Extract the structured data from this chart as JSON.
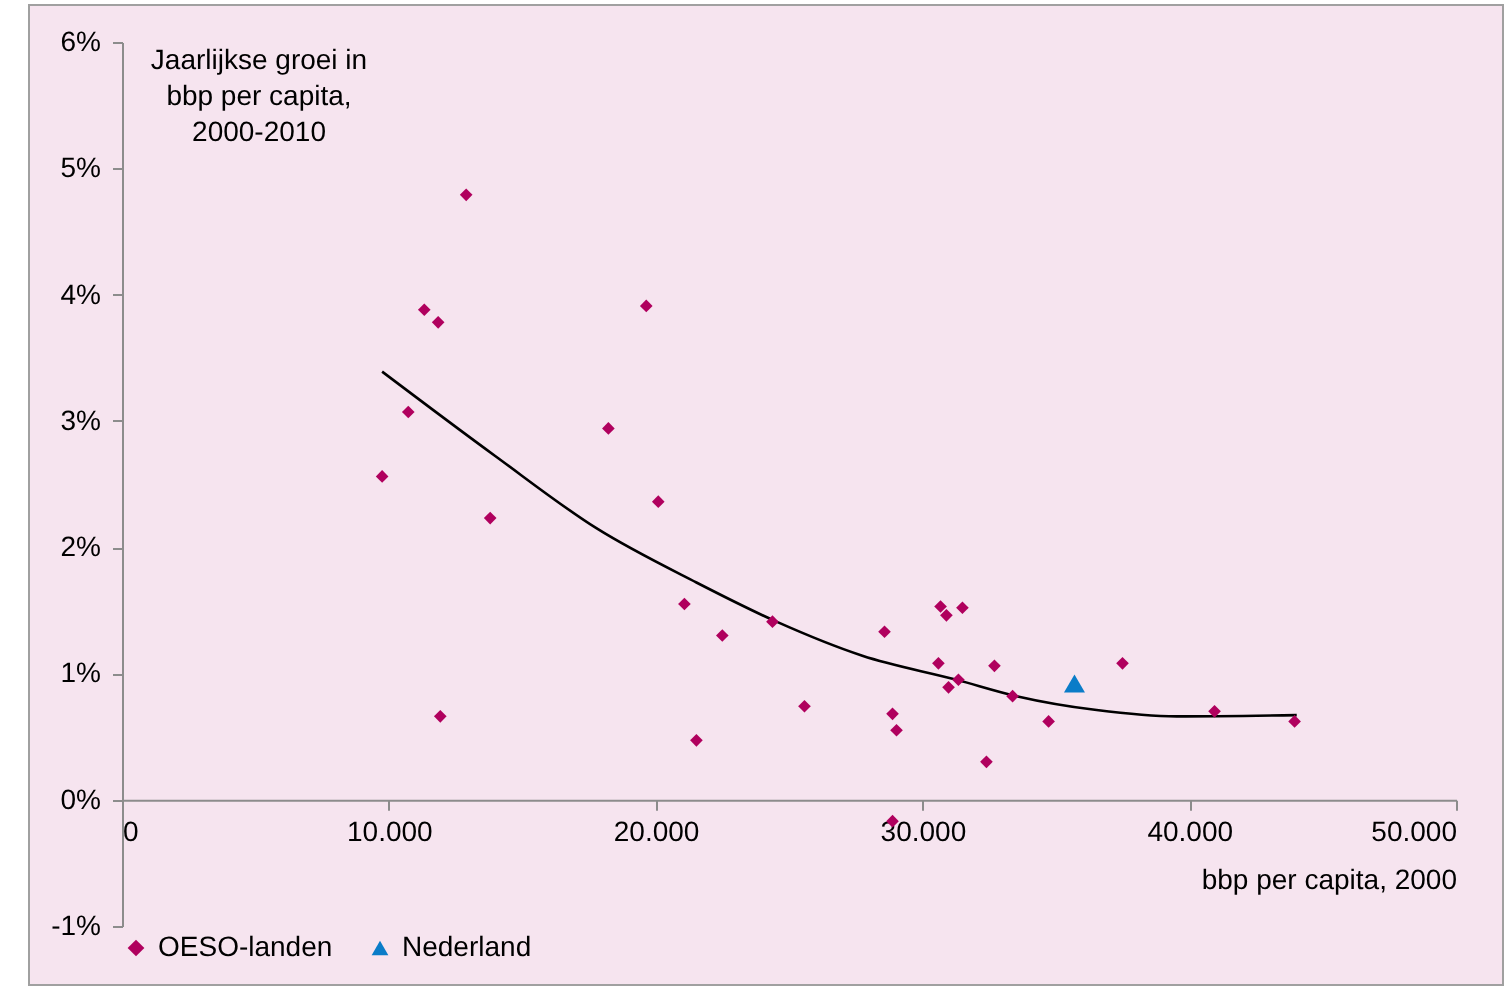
{
  "chart_data": {
    "type": "scatter",
    "ylabel": "Jaarlijkse groei in\nbbp per capita,\n2000-2010",
    "xlabel": "bbp per capita, 2000",
    "xlim": [
      0,
      50000
    ],
    "xticks": [
      {
        "value": 0,
        "label": "0"
      },
      {
        "value": 10000,
        "label": "10.000"
      },
      {
        "value": 20000,
        "label": "20.000"
      },
      {
        "value": 30000,
        "label": "30.000"
      },
      {
        "value": 40000,
        "label": "40.000"
      },
      {
        "value": 50000,
        "label": "50.000"
      }
    ],
    "ylim": [
      -1,
      6
    ],
    "yticks": [
      {
        "value": -1,
        "label": "-1%"
      },
      {
        "value": 0,
        "label": "0%"
      },
      {
        "value": 1,
        "label": "1%"
      },
      {
        "value": 2,
        "label": "2%"
      },
      {
        "value": 3,
        "label": "3%"
      },
      {
        "value": 4,
        "label": "4%"
      },
      {
        "value": 5,
        "label": "5%"
      },
      {
        "value": 6,
        "label": "6%"
      }
    ],
    "grid": false,
    "legend": "bottom",
    "series": [
      {
        "name": "OESO-landen",
        "color": "#b0005e",
        "marker": "diamond",
        "x": [
          9750,
          10730,
          11330,
          11850,
          12900,
          11930,
          13800,
          18230,
          19650,
          20100,
          21080,
          21530,
          22500,
          24380,
          25580,
          28580,
          28880,
          29030,
          28880,
          30680,
          30900,
          31500,
          30600,
          30980,
          31350,
          32400,
          32700,
          33380,
          34730,
          37500,
          40950,
          43950
        ],
        "values": [
          2.56,
          3.07,
          3.88,
          3.78,
          4.79,
          0.66,
          2.23,
          2.94,
          3.91,
          2.36,
          1.55,
          0.47,
          1.3,
          1.41,
          0.74,
          1.33,
          0.68,
          0.55,
          -0.17,
          1.53,
          1.46,
          1.52,
          1.08,
          0.89,
          0.95,
          0.3,
          1.06,
          0.82,
          0.62,
          1.08,
          0.7,
          0.62
        ]
      },
      {
        "name": "Nederland",
        "color": "#0a7cc8",
        "marker": "triangle",
        "x": [
          35700
        ],
        "values": [
          0.92
        ]
      },
      {
        "type": "line",
        "color": "#000000",
        "x": [
          9750,
          14000,
          17780,
          21530,
          24530,
          27750,
          31280,
          33530,
          36530,
          39530,
          44030
        ],
        "values": [
          3.39,
          2.72,
          2.15,
          1.72,
          1.41,
          1.14,
          0.95,
          0.82,
          0.71,
          0.66,
          0.67
        ]
      }
    ]
  }
}
